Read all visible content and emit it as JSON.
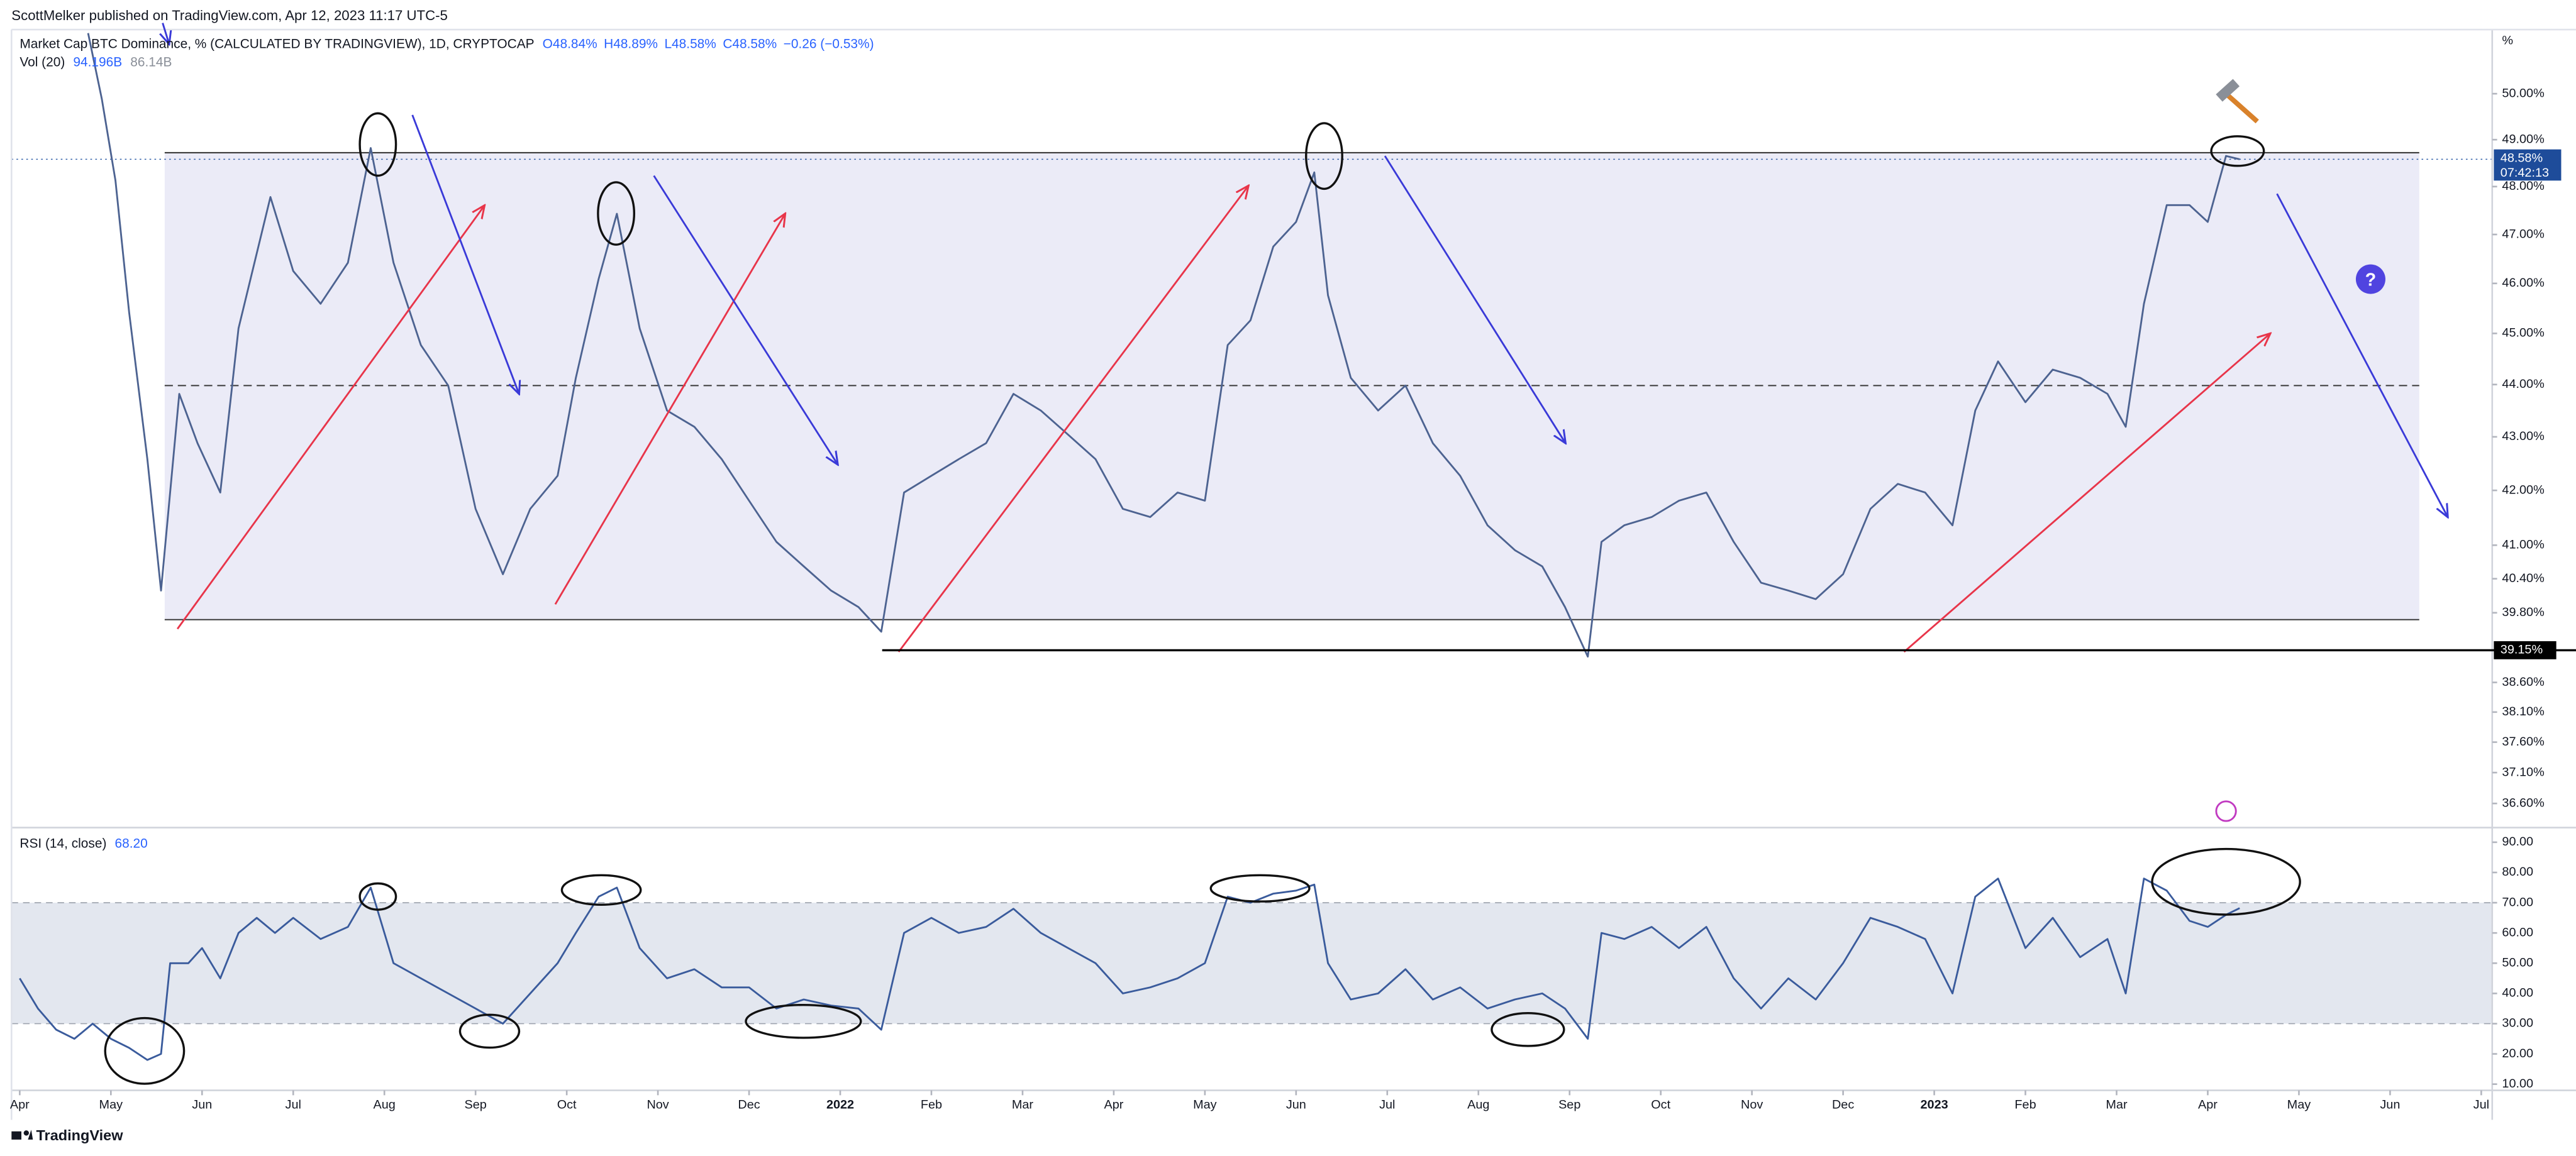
{
  "header": "ScottMelker published on TradingView.com, Apr 12, 2023 11:17 UTC-5",
  "footer": "TradingView",
  "chart_data": [
    {
      "type": "line",
      "title": "Market Cap BTC Dominance, % (CALCULATED BY TRADINGVIEW), 1D, CRYPTOCAP",
      "legend": [
        "O48.84%",
        "H48.89%",
        "L48.58%",
        "C48.58%",
        "−0.26 (−0.53%)"
      ],
      "volume_title": "Vol (20)",
      "volume_legend": [
        "94.196B",
        "86.14B"
      ],
      "axis_unit": "%",
      "x": [
        0.75,
        0.9,
        1.05,
        1.2,
        1.4,
        1.55,
        1.75,
        1.95,
        2.2,
        2.4,
        2.75,
        3.0,
        3.3,
        3.6,
        3.85,
        4.1,
        4.4,
        4.7,
        5.0,
        5.3,
        5.6,
        5.9,
        6.1,
        6.35,
        6.55,
        6.8,
        7.1,
        7.4,
        7.7,
        8.0,
        8.3,
        8.6,
        8.9,
        9.2,
        9.45,
        9.7,
        10.0,
        10.3,
        10.6,
        10.9,
        11.2,
        11.5,
        11.8,
        12.1,
        12.4,
        12.7,
        13.0,
        13.25,
        13.5,
        13.75,
        14.0,
        14.2,
        14.35,
        14.6,
        14.9,
        15.2,
        15.5,
        15.8,
        16.1,
        16.4,
        16.7,
        16.95,
        17.2,
        17.35,
        17.6,
        17.9,
        18.2,
        18.5,
        18.8,
        19.1,
        19.4,
        19.7,
        20.0,
        20.3,
        20.6,
        20.9,
        21.2,
        21.45,
        21.7,
        22.0,
        22.3,
        22.6,
        22.9,
        23.1,
        23.3,
        23.55,
        23.8,
        24.0,
        24.2,
        24.35
      ],
      "values": [
        51.35,
        49.89,
        48.13,
        45.42,
        42.58,
        40.19,
        43.82,
        42.88,
        41.96,
        45.1,
        47.78,
        46.25,
        45.59,
        46.42,
        48.82,
        46.42,
        44.77,
        43.98,
        41.66,
        40.48,
        41.66,
        42.27,
        44.13,
        46.09,
        47.43,
        45.1,
        43.5,
        43.19,
        42.58,
        41.81,
        41.06,
        40.62,
        40.19,
        39.9,
        39.47,
        41.96,
        42.27,
        42.58,
        42.88,
        43.82,
        43.5,
        43.04,
        42.58,
        41.66,
        41.51,
        41.96,
        41.81,
        44.77,
        45.26,
        46.75,
        47.26,
        48.3,
        45.76,
        44.13,
        43.5,
        43.98,
        42.88,
        42.27,
        41.36,
        40.91,
        40.62,
        39.9,
        39.04,
        41.06,
        41.36,
        41.51,
        41.81,
        41.96,
        41.06,
        40.33,
        40.19,
        40.04,
        40.48,
        41.66,
        42.12,
        41.96,
        41.36,
        43.5,
        44.45,
        43.66,
        44.29,
        44.13,
        43.82,
        43.19,
        45.59,
        47.61,
        47.61,
        47.26,
        48.65,
        48.58
      ],
      "color": "#4d6391",
      "log_scale": true,
      "xlim": [
        -0.09,
        27.12
      ],
      "ylim": [
        36.24,
        51.43
      ],
      "yticks": [
        {
          "value": 50,
          "label": "50.00%"
        },
        {
          "value": 49,
          "label": "49.00%"
        },
        {
          "value": 48,
          "label": "48.00%"
        },
        {
          "value": 47,
          "label": "47.00%"
        },
        {
          "value": 46,
          "label": "46.00%"
        },
        {
          "value": 45,
          "label": "45.00%"
        },
        {
          "value": 44,
          "label": "44.00%"
        },
        {
          "value": 43,
          "label": "43.00%"
        },
        {
          "value": 42,
          "label": "42.00%"
        },
        {
          "value": 41,
          "label": "41.00%"
        },
        {
          "value": 40.4,
          "label": "40.40%"
        },
        {
          "value": 39.8,
          "label": "39.80%"
        },
        {
          "value": 38.6,
          "label": "38.60%"
        },
        {
          "value": 38.1,
          "label": "38.10%"
        },
        {
          "value": 37.6,
          "label": "37.60%"
        },
        {
          "value": 37.1,
          "label": "37.10%"
        },
        {
          "value": 36.6,
          "label": "36.60%"
        }
      ],
      "last_price": {
        "value": 48.58,
        "label": "48.58%"
      },
      "countdown": "07:42:13",
      "support": {
        "value": 39.15,
        "label": "39.15%",
        "x_start": 9.46
      },
      "range_box": {
        "x": [
          1.59,
          26.32
        ],
        "top": 48.72,
        "bottom": 39.68,
        "mid": 43.98
      },
      "annotation": "?"
    },
    {
      "type": "line",
      "title": "RSI (14, close)",
      "legend": "68.20",
      "x": [
        0,
        0.2,
        0.4,
        0.6,
        0.8,
        1.0,
        1.2,
        1.4,
        1.55,
        1.65,
        1.85,
        2.0,
        2.2,
        2.4,
        2.6,
        2.8,
        3.0,
        3.3,
        3.6,
        3.85,
        4.1,
        4.4,
        4.7,
        5.0,
        5.3,
        5.6,
        5.9,
        6.1,
        6.35,
        6.55,
        6.8,
        7.1,
        7.4,
        7.7,
        8.0,
        8.3,
        8.6,
        8.9,
        9.2,
        9.45,
        9.7,
        10.0,
        10.3,
        10.6,
        10.9,
        11.2,
        11.5,
        11.8,
        12.1,
        12.4,
        12.7,
        13.0,
        13.25,
        13.5,
        13.75,
        14.0,
        14.2,
        14.35,
        14.6,
        14.9,
        15.2,
        15.5,
        15.8,
        16.1,
        16.4,
        16.7,
        16.95,
        17.2,
        17.35,
        17.6,
        17.9,
        18.2,
        18.5,
        18.8,
        19.1,
        19.4,
        19.7,
        20.0,
        20.3,
        20.6,
        20.9,
        21.2,
        21.45,
        21.7,
        22.0,
        22.3,
        22.6,
        22.9,
        23.1,
        23.3,
        23.55,
        23.8,
        24.0,
        24.2,
        24.35
      ],
      "values": [
        45,
        35,
        28,
        25,
        30,
        25,
        22,
        18,
        20,
        50,
        50,
        55,
        45,
        60,
        65,
        60,
        65,
        58,
        62,
        75,
        50,
        45,
        40,
        35,
        30,
        40,
        50,
        60,
        72,
        75,
        55,
        45,
        48,
        42,
        42,
        35,
        38,
        36,
        35,
        28,
        60,
        65,
        60,
        62,
        68,
        60,
        55,
        50,
        40,
        42,
        45,
        50,
        72,
        70,
        73,
        74,
        76,
        50,
        38,
        40,
        48,
        38,
        42,
        35,
        38,
        40,
        35,
        25,
        60,
        58,
        62,
        55,
        62,
        45,
        35,
        45,
        38,
        50,
        65,
        62,
        58,
        40,
        72,
        78,
        55,
        65,
        52,
        58,
        40,
        78,
        74,
        64,
        62,
        66,
        68.2
      ],
      "color": "#3a5b9c",
      "xlim": [
        -0.09,
        27.12
      ],
      "ylim": [
        8.5,
        94.3
      ],
      "yticks": [
        {
          "value": 90,
          "label": "90.00"
        },
        {
          "value": 80,
          "label": "80.00"
        },
        {
          "value": 70,
          "label": "70.00"
        },
        {
          "value": 60,
          "label": "60.00"
        },
        {
          "value": 50,
          "label": "50.00"
        },
        {
          "value": 40,
          "label": "40.00"
        },
        {
          "value": 30,
          "label": "30.00"
        },
        {
          "value": 20,
          "label": "20.00"
        },
        {
          "value": 10,
          "label": "10.00"
        }
      ],
      "band": [
        30,
        70
      ],
      "xticks": [
        {
          "value": 0,
          "label": "Apr"
        },
        {
          "value": 1,
          "label": "May"
        },
        {
          "value": 2,
          "label": "Jun"
        },
        {
          "value": 3,
          "label": "Jul"
        },
        {
          "value": 4,
          "label": "Aug"
        },
        {
          "value": 5,
          "label": "Sep"
        },
        {
          "value": 6,
          "label": "Oct"
        },
        {
          "value": 7,
          "label": "Nov"
        },
        {
          "value": 8,
          "label": "Dec"
        },
        {
          "value": 9,
          "label": "2022"
        },
        {
          "value": 10,
          "label": "Feb"
        },
        {
          "value": 11,
          "label": "Mar"
        },
        {
          "value": 12,
          "label": "Apr"
        },
        {
          "value": 13,
          "label": "May"
        },
        {
          "value": 14,
          "label": "Jun"
        },
        {
          "value": 15,
          "label": "Jul"
        },
        {
          "value": 16,
          "label": "Aug"
        },
        {
          "value": 17,
          "label": "Sep"
        },
        {
          "value": 18,
          "label": "Oct"
        },
        {
          "value": 19,
          "label": "Nov"
        },
        {
          "value": 20,
          "label": "Dec"
        },
        {
          "value": 21,
          "label": "2023"
        },
        {
          "value": 22,
          "label": "Feb"
        },
        {
          "value": 23,
          "label": "Mar"
        },
        {
          "value": 24,
          "label": "Apr"
        },
        {
          "value": 25,
          "label": "May"
        },
        {
          "value": 26,
          "label": "Jun"
        },
        {
          "value": 27,
          "label": "Jul"
        }
      ]
    }
  ]
}
